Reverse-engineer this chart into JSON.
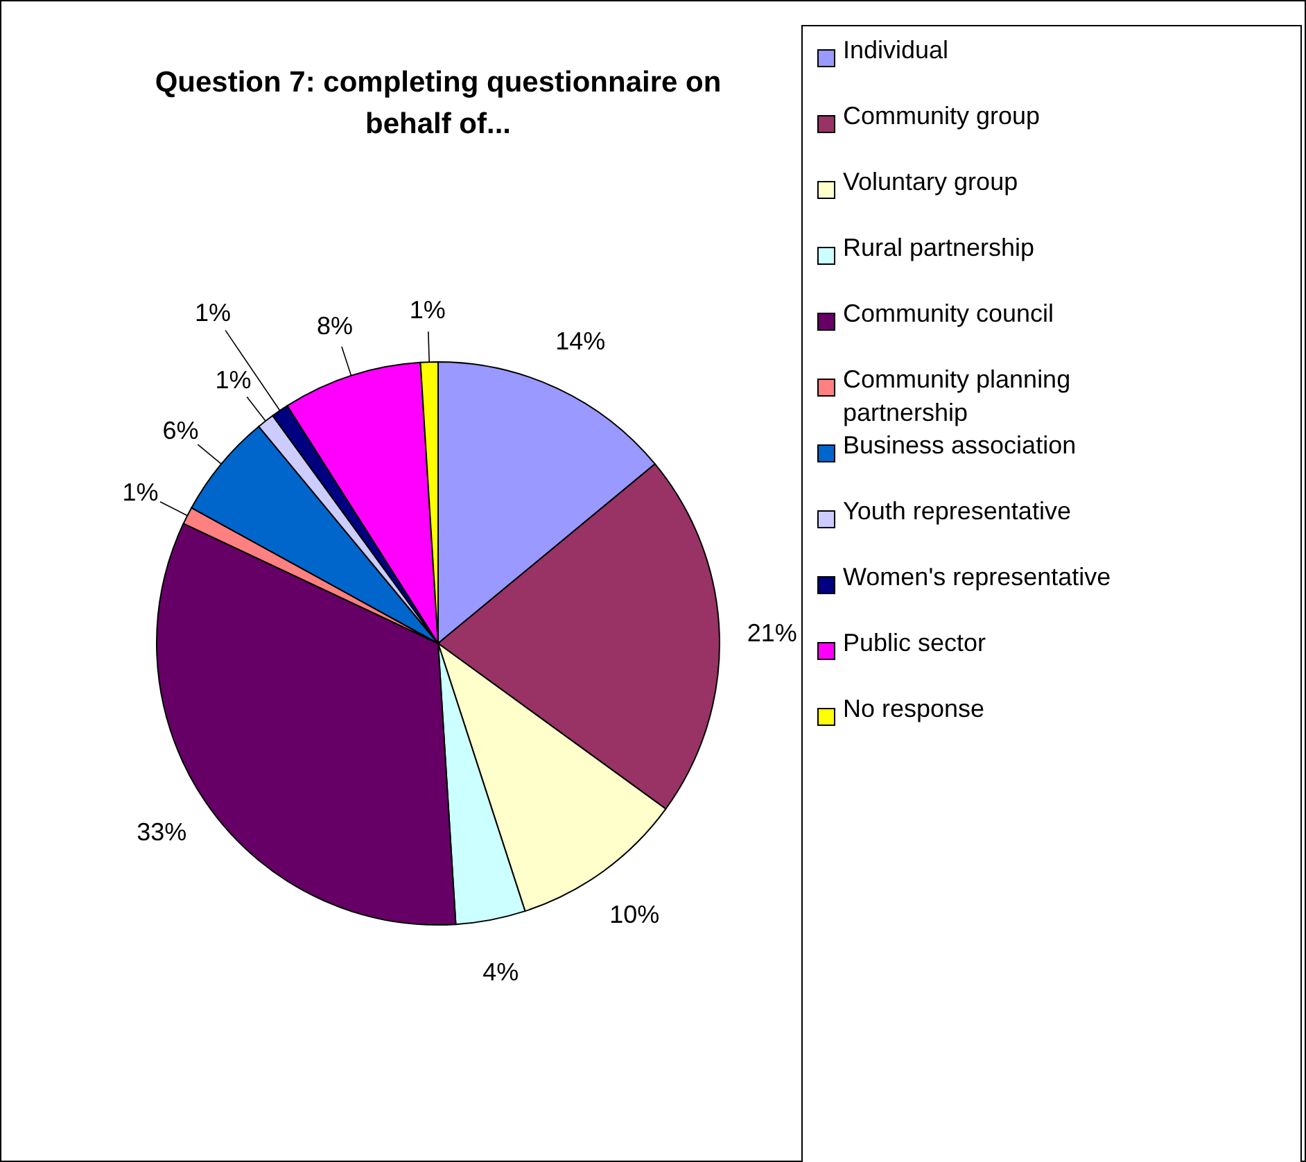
{
  "chart_data": {
    "type": "pie",
    "title": "Question 7: completing questionnaire on behalf of...",
    "categories": [
      "Individual",
      "Community group",
      "Voluntary group",
      "Rural partnership",
      "Community council",
      "Community planning partnership",
      "Business association",
      "Youth representative",
      "Women's representative",
      "Public sector",
      "No response"
    ],
    "values": [
      14,
      21,
      10,
      4,
      33,
      1,
      6,
      1,
      1,
      8,
      1
    ],
    "colors": [
      "#9999ff",
      "#993366",
      "#ffffcc",
      "#ccffff",
      "#660066",
      "#ff8080",
      "#0066cc",
      "#ccccff",
      "#000080",
      "#ff00ff",
      "#ffff00"
    ],
    "value_labels": [
      "14%",
      "21%",
      "10%",
      "4%",
      "33%",
      "1%",
      "6%",
      "1%",
      "1%",
      "8%",
      "1%"
    ],
    "legend": "right"
  }
}
